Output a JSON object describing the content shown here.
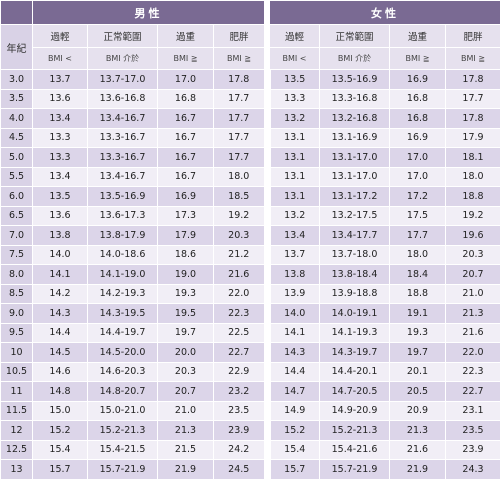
{
  "male_label": "男性",
  "female_label": "女性",
  "age_header": "年紀",
  "col_headers": [
    "過輕",
    "正常範圍",
    "過重",
    "肥胖"
  ],
  "unit_labels": [
    "BMI <",
    "BMI 介於",
    "BMI ≧",
    "BMI ≧"
  ],
  "rows": [
    {
      "age": "3.0",
      "male": [
        "13.7",
        "13.7-17.0",
        "17.0",
        "17.8"
      ],
      "female": [
        "13.5",
        "13.5-16.9",
        "16.9",
        "17.8"
      ]
    },
    {
      "age": "3.5",
      "male": [
        "13.6",
        "13.6-16.8",
        "16.8",
        "17.7"
      ],
      "female": [
        "13.3",
        "13.3-16.8",
        "16.8",
        "17.7"
      ]
    },
    {
      "age": "4.0",
      "male": [
        "13.4",
        "13.4-16.7",
        "16.7",
        "17.7"
      ],
      "female": [
        "13.2",
        "13.2-16.8",
        "16.8",
        "17.8"
      ]
    },
    {
      "age": "4.5",
      "male": [
        "13.3",
        "13.3-16.7",
        "16.7",
        "17.7"
      ],
      "female": [
        "13.1",
        "13.1-16.9",
        "16.9",
        "17.9"
      ]
    },
    {
      "age": "5.0",
      "male": [
        "13.3",
        "13.3-16.7",
        "16.7",
        "17.7"
      ],
      "female": [
        "13.1",
        "13.1-17.0",
        "17.0",
        "18.1"
      ]
    },
    {
      "age": "5.5",
      "male": [
        "13.4",
        "13.4-16.7",
        "16.7",
        "18.0"
      ],
      "female": [
        "13.1",
        "13.1-17.0",
        "17.0",
        "18.0"
      ]
    },
    {
      "age": "6.0",
      "male": [
        "13.5",
        "13.5-16.9",
        "16.9",
        "18.5"
      ],
      "female": [
        "13.1",
        "13.1-17.2",
        "17.2",
        "18.8"
      ]
    },
    {
      "age": "6.5",
      "male": [
        "13.6",
        "13.6-17.3",
        "17.3",
        "19.2"
      ],
      "female": [
        "13.2",
        "13.2-17.5",
        "17.5",
        "19.2"
      ]
    },
    {
      "age": "7.0",
      "male": [
        "13.8",
        "13.8-17.9",
        "17.9",
        "20.3"
      ],
      "female": [
        "13.4",
        "13.4-17.7",
        "17.7",
        "19.6"
      ]
    },
    {
      "age": "7.5",
      "male": [
        "14.0",
        "14.0-18.6",
        "18.6",
        "21.2"
      ],
      "female": [
        "13.7",
        "13.7-18.0",
        "18.0",
        "20.3"
      ]
    },
    {
      "age": "8.0",
      "male": [
        "14.1",
        "14.1-19.0",
        "19.0",
        "21.6"
      ],
      "female": [
        "13.8",
        "13.8-18.4",
        "18.4",
        "20.7"
      ]
    },
    {
      "age": "8.5",
      "male": [
        "14.2",
        "14.2-19.3",
        "19.3",
        "22.0"
      ],
      "female": [
        "13.9",
        "13.9-18.8",
        "18.8",
        "21.0"
      ]
    },
    {
      "age": "9.0",
      "male": [
        "14.3",
        "14.3-19.5",
        "19.5",
        "22.3"
      ],
      "female": [
        "14.0",
        "14.0-19.1",
        "19.1",
        "21.3"
      ]
    },
    {
      "age": "9.5",
      "male": [
        "14.4",
        "14.4-19.7",
        "19.7",
        "22.5"
      ],
      "female": [
        "14.1",
        "14.1-19.3",
        "19.3",
        "21.6"
      ]
    },
    {
      "age": "10",
      "male": [
        "14.5",
        "14.5-20.0",
        "20.0",
        "22.7"
      ],
      "female": [
        "14.3",
        "14.3-19.7",
        "19.7",
        "22.0"
      ]
    },
    {
      "age": "10.5",
      "male": [
        "14.6",
        "14.6-20.3",
        "20.3",
        "22.9"
      ],
      "female": [
        "14.4",
        "14.4-20.1",
        "20.1",
        "22.3"
      ]
    },
    {
      "age": "11",
      "male": [
        "14.8",
        "14.8-20.7",
        "20.7",
        "23.2"
      ],
      "female": [
        "14.7",
        "14.7-20.5",
        "20.5",
        "22.7"
      ]
    },
    {
      "age": "11.5",
      "male": [
        "15.0",
        "15.0-21.0",
        "21.0",
        "23.5"
      ],
      "female": [
        "14.9",
        "14.9-20.9",
        "20.9",
        "23.1"
      ]
    },
    {
      "age": "12",
      "male": [
        "15.2",
        "15.2-21.3",
        "21.3",
        "23.9"
      ],
      "female": [
        "15.2",
        "15.2-21.3",
        "21.3",
        "23.5"
      ]
    },
    {
      "age": "12.5",
      "male": [
        "15.4",
        "15.4-21.5",
        "21.5",
        "24.2"
      ],
      "female": [
        "15.4",
        "15.4-21.6",
        "21.6",
        "23.9"
      ]
    },
    {
      "age": "13",
      "male": [
        "15.7",
        "15.7-21.9",
        "21.9",
        "24.5"
      ],
      "female": [
        "15.7",
        "15.7-21.9",
        "21.9",
        "24.3"
      ]
    }
  ]
}
